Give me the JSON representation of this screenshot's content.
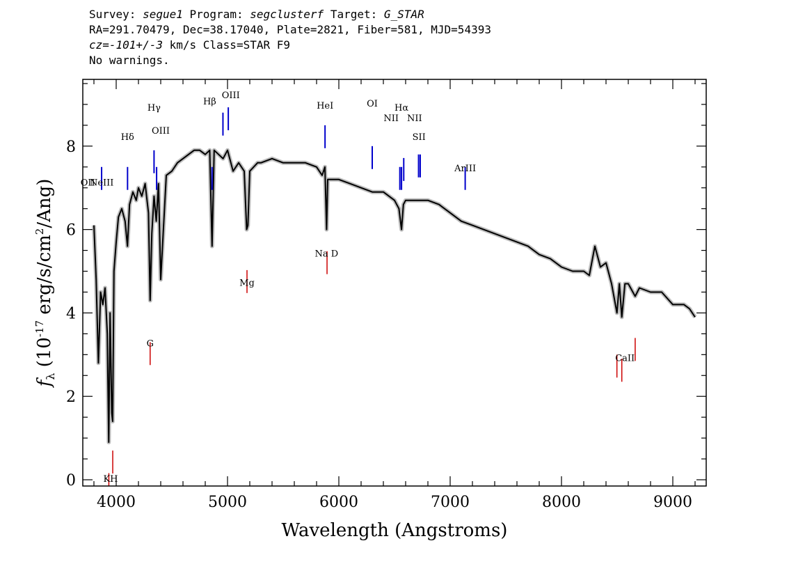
{
  "header": {
    "line1": {
      "survey_label": "Survey:",
      "survey": "segue1",
      "program_label": "Program:",
      "program": "segclusterf",
      "target_label": "Target:",
      "target": "G_STAR"
    },
    "line2": "RA=291.70479, Dec=38.17040, Plate=2821, Fiber=581, MJD=54393",
    "line3": {
      "cz": "cz=-101+/-3",
      "rest": "km/s Class=STAR F9"
    },
    "line4": "No warnings."
  },
  "colors": {
    "flux": "#000000",
    "error_band": "#bdbdbd",
    "emission_marker": "#0000cc",
    "absorption_marker": "#cc0000"
  },
  "chart_data": {
    "type": "line",
    "title": "",
    "xlabel": "Wavelength (Angstroms)",
    "ylabel": "f_λ (10^-17 erg/s/cm^2/Ang)",
    "xlim": [
      3700,
      9300
    ],
    "ylim": [
      -0.15,
      9.6
    ],
    "x_ticks": [
      4000,
      5000,
      6000,
      7000,
      8000,
      9000
    ],
    "y_ticks": [
      0,
      2,
      4,
      6,
      8
    ],
    "x_tick_labels": [
      "4000",
      "5000",
      "6000",
      "7000",
      "8000",
      "9000"
    ],
    "y_tick_labels": [
      "0",
      "2",
      "4",
      "6",
      "8"
    ],
    "grid": false,
    "legend": "none",
    "series": [
      {
        "x": [
          3800,
          3820,
          3840,
          3860,
          3880,
          3900,
          3920,
          3933,
          3945,
          3960,
          3968,
          3980,
          4000,
          4020,
          4050,
          4080,
          4101,
          4120,
          4150,
          4180,
          4200,
          4230,
          4260,
          4290,
          4305,
          4320,
          4340,
          4360,
          4380,
          4400,
          4450,
          4500,
          4550,
          4600,
          4650,
          4700,
          4750,
          4800,
          4840,
          4861,
          4880,
          4920,
          4960,
          5000,
          5050,
          5100,
          5150,
          5172,
          5183,
          5200,
          5270,
          5300,
          5400,
          5500,
          5600,
          5700,
          5800,
          5850,
          5875,
          5890,
          5900,
          5950,
          6000,
          6100,
          6200,
          6300,
          6400,
          6500,
          6540,
          6563,
          6580,
          6600,
          6700,
          6800,
          6900,
          7000,
          7100,
          7200,
          7300,
          7400,
          7500,
          7600,
          7700,
          7800,
          7900,
          8000,
          8100,
          8200,
          8250,
          8300,
          8350,
          8400,
          8450,
          8498,
          8520,
          8542,
          8570,
          8600,
          8662,
          8700,
          8800,
          8900,
          9000,
          9100,
          9150,
          9200
        ],
        "y": [
          6.1,
          4.8,
          2.8,
          4.5,
          4.2,
          4.6,
          3.5,
          0.9,
          4.0,
          1.6,
          1.4,
          5.0,
          5.7,
          6.3,
          6.5,
          6.2,
          5.6,
          6.6,
          6.9,
          6.7,
          7.0,
          6.8,
          7.1,
          6.4,
          4.3,
          5.9,
          6.8,
          6.2,
          7.1,
          4.8,
          7.3,
          7.4,
          7.6,
          7.7,
          7.8,
          7.9,
          7.9,
          7.8,
          7.9,
          5.6,
          7.9,
          7.8,
          7.7,
          7.9,
          7.4,
          7.6,
          7.4,
          6.0,
          6.1,
          7.4,
          7.6,
          7.6,
          7.7,
          7.6,
          7.6,
          7.6,
          7.5,
          7.3,
          7.5,
          6.0,
          7.2,
          7.2,
          7.2,
          7.1,
          7.0,
          6.9,
          6.9,
          6.7,
          6.5,
          6.0,
          6.6,
          6.7,
          6.7,
          6.7,
          6.6,
          6.4,
          6.2,
          6.1,
          6.0,
          5.9,
          5.8,
          5.7,
          5.6,
          5.4,
          5.3,
          5.1,
          5.0,
          5.0,
          4.9,
          5.6,
          5.1,
          5.2,
          4.7,
          4.0,
          4.7,
          3.9,
          4.7,
          4.7,
          4.4,
          4.6,
          4.5,
          4.5,
          4.2,
          4.2,
          4.1,
          3.9
        ]
      }
    ],
    "annotations": {
      "emission_lines": [
        {
          "label": "OII",
          "x": 3727
        },
        {
          "label": "NeIII",
          "x": 3869
        },
        {
          "label": "Hδ",
          "x": 4102
        },
        {
          "label": "Hγ",
          "x": 4340
        },
        {
          "label": "OIII",
          "x": 4363
        },
        {
          "label": "Hβ",
          "x": 4861
        },
        {
          "label": "OIII",
          "x": 4959
        },
        {
          "label": "OIII",
          "x": 5007
        },
        {
          "label": "HeI",
          "x": 5876
        },
        {
          "label": "OI",
          "x": 6300
        },
        {
          "label": "NII",
          "x": 6548
        },
        {
          "label": "Hα",
          "x": 6563
        },
        {
          "label": "NII",
          "x": 6583
        },
        {
          "label": "SII",
          "x": 6716
        },
        {
          "label": "SII",
          "x": 6731
        },
        {
          "label": "ArIII",
          "x": 7135
        }
      ],
      "absorption_lines": [
        {
          "label": "K",
          "x": 3934
        },
        {
          "label": "H",
          "x": 3969
        },
        {
          "label": "G",
          "x": 4305
        },
        {
          "label": "Mg",
          "x": 5175
        },
        {
          "label": "Na D",
          "x": 5894
        },
        {
          "label": "CaII",
          "x": 8498
        },
        {
          "label": "CaII",
          "x": 8542
        },
        {
          "label": "CaII",
          "x": 8662
        }
      ],
      "emission_label_texts": [
        {
          "text": "OII",
          "x": 3745,
          "y": 7.05
        },
        {
          "text": "NeIII",
          "x": 3870,
          "y": 7.05
        },
        {
          "text": "Hδ",
          "x": 4102,
          "y": 8.15
        },
        {
          "text": "Hγ",
          "x": 4340,
          "y": 8.85
        },
        {
          "text": "OIII",
          "x": 4400,
          "y": 8.3
        },
        {
          "text": "Hβ",
          "x": 4840,
          "y": 9.0
        },
        {
          "text": "OIII",
          "x": 5030,
          "y": 9.15
        },
        {
          "text": "HeI",
          "x": 5876,
          "y": 8.9
        },
        {
          "text": "OI",
          "x": 6300,
          "y": 8.95
        },
        {
          "text": "NII",
          "x": 6470,
          "y": 8.6
        },
        {
          "text": "Hα",
          "x": 6563,
          "y": 8.85
        },
        {
          "text": "NII",
          "x": 6680,
          "y": 8.6
        },
        {
          "text": "SII",
          "x": 6720,
          "y": 8.15
        },
        {
          "text": "ArIII",
          "x": 7135,
          "y": 7.4
        }
      ],
      "absorption_label_texts": [
        {
          "text": "KH",
          "x": 3950,
          "y": -0.05
        },
        {
          "text": "G",
          "x": 4305,
          "y": 3.2
        },
        {
          "text": "Mg",
          "x": 5175,
          "y": 4.65
        },
        {
          "text": "Na D",
          "x": 5890,
          "y": 5.35
        },
        {
          "text": "CaII",
          "x": 8570,
          "y": 2.85
        }
      ]
    }
  }
}
